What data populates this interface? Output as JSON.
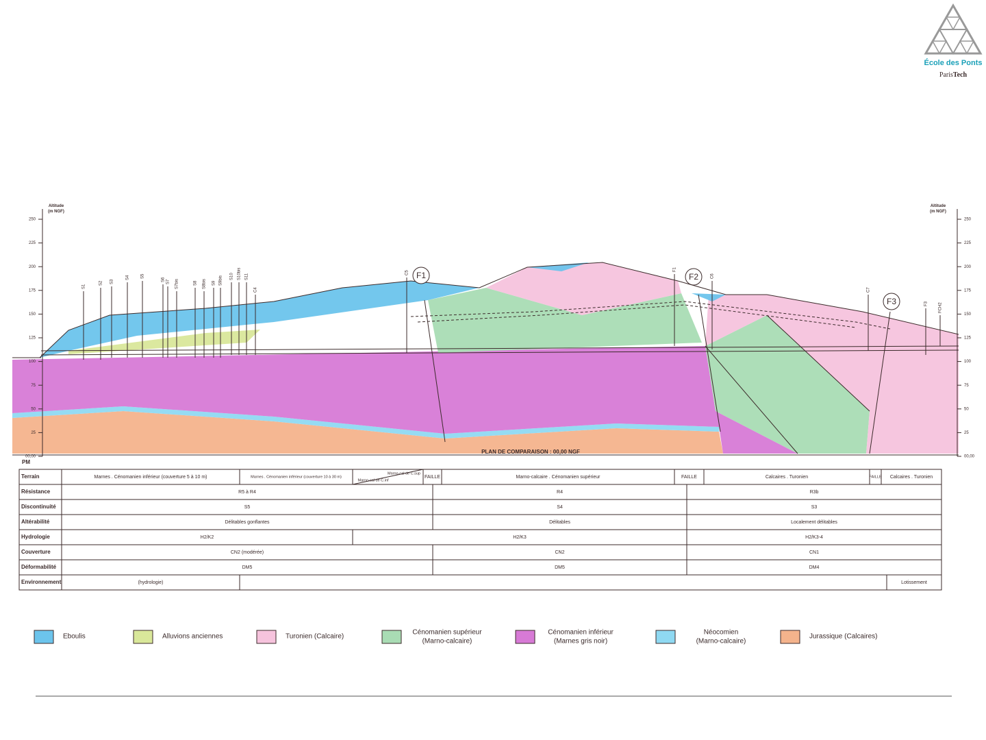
{
  "logo": {
    "name": "École des Ponts",
    "sub_light": "Paris",
    "sub_bold": "Tech"
  },
  "section": {
    "axis_title_left": [
      "Altitude",
      "(m NGF)"
    ],
    "axis_title_right": [
      "Altitude",
      "(m NGF)"
    ],
    "left_ticks": [
      "250",
      "225",
      "200",
      "175",
      "150",
      "125",
      "100",
      "75",
      "50",
      "25",
      "00,00"
    ],
    "right_ticks": [
      "250",
      "225",
      "200",
      "175",
      "150",
      "125",
      "100",
      "75",
      "50",
      "25",
      "00,00"
    ],
    "faults": [
      "F1",
      "F2",
      "F3"
    ],
    "boreholes": [
      "S1",
      "S2",
      "S3",
      "S4",
      "S5",
      "S6",
      "S7",
      "S7bis",
      "S8",
      "S8bis",
      "S9",
      "S9bis",
      "S10",
      "S10bis",
      "S11",
      "C4",
      "C5",
      "F1",
      "C6",
      "C7",
      "F3",
      "FCH2"
    ],
    "reference_plane": "PLAN DE COMPARAISON : 00,00 NGF",
    "pm_label": "PM"
  },
  "table": {
    "rows": [
      {
        "label": "Terrain",
        "cells": [
          "Marnes . Cénomanien inférieur (couverture 5 à 10 m)",
          "Marnes . Cénomanien inférieur (couverture 10 à 30 m)",
          "Marno-cal de C.sup",
          "Marno-cal de C.inf",
          "FAILLE",
          "Marno-calcaire . Cénomanien supérieur",
          "FAILLE",
          "Calcaires . Turonien",
          "FAILLE",
          "Calcaires . Turonien"
        ]
      },
      {
        "label": "Résistance",
        "cells": [
          "R5 à R4",
          "R4",
          "R3b"
        ]
      },
      {
        "label": "Discontinuité",
        "cells": [
          "S5",
          "S4",
          "S3"
        ]
      },
      {
        "label": "Altérabilité",
        "cells": [
          "Délitables gonflantes",
          "Délitables",
          "Localement délitables"
        ]
      },
      {
        "label": "Hydrologie",
        "cells": [
          "H2/K2",
          "H2/K3",
          "H2/K3-4"
        ]
      },
      {
        "label": "Couverture",
        "cells": [
          "CN2 (modérée)",
          "CN2",
          "CN1"
        ]
      },
      {
        "label": "Déformabilité",
        "cells": [
          "DM5",
          "DM5",
          "DM4"
        ]
      },
      {
        "label": "Environnement",
        "cells": [
          "(hydrologie)",
          "Lotissement"
        ]
      }
    ]
  },
  "legend": [
    {
      "label": "Eboulis",
      "color": "#6cc4ec"
    },
    {
      "label": "Alluvions anciennes",
      "color": "#d9e79a"
    },
    {
      "label": "Turonien (Calcaire)",
      "color": "#f6c3dd"
    },
    {
      "label": "Cénomanien supérieur",
      "note": "(Marno-calcaire)",
      "color": "#a9dcb4"
    },
    {
      "label": "Cénomanien inférieur",
      "note": "(Marnes gris noir)",
      "color": "#d77ad6"
    },
    {
      "label": "Néocomien",
      "note": "(Marno-calcaire)",
      "color": "#8fd9f2"
    },
    {
      "label": "Jurassique (Calcaires)",
      "color": "#f4b38c"
    }
  ]
}
